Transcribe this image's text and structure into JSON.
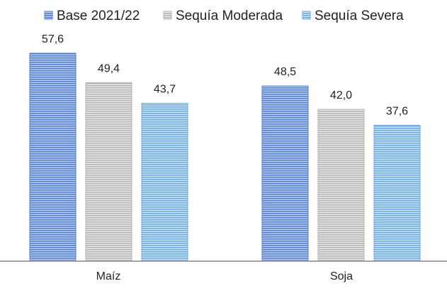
{
  "chart_data": {
    "type": "bar",
    "categories": [
      "Maíz",
      "Soja"
    ],
    "series": [
      {
        "name": "Base 2021/22",
        "values": [
          57.6,
          48.5
        ],
        "labels": [
          "57,6",
          "48,5"
        ],
        "color": "#4f7fdc",
        "stripe": "#c3d3f5"
      },
      {
        "name": "Sequía Moderada",
        "values": [
          49.4,
          42.0
        ],
        "labels": [
          "49,4",
          "42,0"
        ],
        "color": "#b3b3b3",
        "stripe": "#ececec"
      },
      {
        "name": "Sequía Severa",
        "values": [
          43.7,
          37.6
        ],
        "labels": [
          "43,7",
          "37,6"
        ],
        "color": "#69abea",
        "stripe": "#d2e7fb"
      }
    ],
    "title": "",
    "xlabel": "",
    "ylabel": "",
    "ylim": [
      0,
      60
    ],
    "grid": false,
    "legend": "top"
  }
}
